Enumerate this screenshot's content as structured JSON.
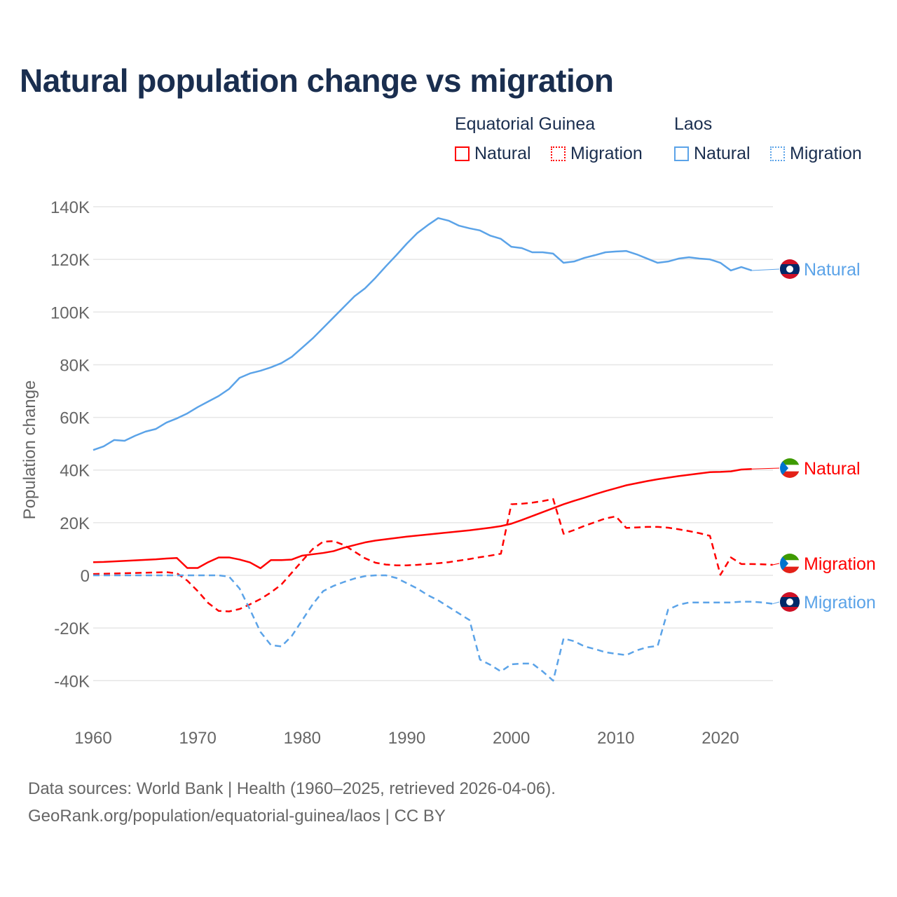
{
  "title": "Natural population change vs migration",
  "legend": {
    "groups": [
      {
        "name": "Equatorial Guinea",
        "color": "#ff0000",
        "items": [
          "Natural",
          "Migration"
        ]
      },
      {
        "name": "Laos",
        "color": "#5ba3e8",
        "items": [
          "Natural",
          "Migration"
        ]
      }
    ]
  },
  "footer": {
    "line1": "Data sources: World Bank | Health (1960–2025, retrieved 2026-04-06).",
    "line2": "GeoRank.org/population/equatorial-guinea/laos | CC BY"
  },
  "chart_data": {
    "type": "line",
    "title": "Natural population change vs migration",
    "xlabel": "",
    "ylabel": "Population change",
    "xlim": [
      1960,
      2025
    ],
    "ylim": [
      -50000,
      140000
    ],
    "x_ticks": [
      1960,
      1970,
      1980,
      1990,
      2000,
      2010,
      2020
    ],
    "x_tick_labels": [
      "1960",
      "1970",
      "1980",
      "1990",
      "2000",
      "2010",
      "2020"
    ],
    "y_ticks": [
      -40000,
      -20000,
      0,
      20000,
      40000,
      60000,
      80000,
      100000,
      120000,
      140000
    ],
    "y_tick_labels": [
      "-40K",
      "-20K",
      "0",
      "20K",
      "40K",
      "60K",
      "80K",
      "100K",
      "120K",
      "140K"
    ],
    "grid": true,
    "legend_position": "top-right",
    "series": [
      {
        "name": "Laos Natural",
        "country": "Laos",
        "kind": "Natural",
        "color": "#5ba3e8",
        "dash": false,
        "end_label": "Natural",
        "start": 1960,
        "values": [
          47.6,
          49,
          51.4,
          51.1,
          53,
          54.6,
          55.6,
          58,
          59.6,
          61.5,
          63.9,
          66,
          68.1,
          70.8,
          75,
          76.7,
          77.7,
          79,
          80.6,
          83,
          86.5,
          90,
          94,
          98,
          102,
          106,
          109,
          113,
          117.4,
          121.6,
          126,
          130,
          133,
          135.7,
          134.7,
          132.8,
          131.8,
          131,
          129,
          127.8,
          124.8,
          124.3,
          122.7,
          122.7,
          122.2,
          118.7,
          119.2,
          120.6,
          121.6,
          122.7,
          123,
          123.2,
          121.9,
          120.3,
          118.7,
          119.2,
          120.3,
          120.8,
          120.3,
          120,
          118.7,
          115.8,
          117.1,
          115.8
        ]
      },
      {
        "name": "Equatorial Guinea Natural",
        "country": "Equatorial Guinea",
        "kind": "Natural",
        "color": "#ff0000",
        "dash": false,
        "end_label": "Natural",
        "start": 1960,
        "values": [
          5,
          5.1,
          5.3,
          5.5,
          5.7,
          5.9,
          6.1,
          6.4,
          6.6,
          2.8,
          2.8,
          5,
          6.8,
          6.8,
          6,
          4.9,
          2.7,
          5.8,
          5.8,
          6,
          7.5,
          8,
          8.5,
          9.2,
          10.5,
          11.5,
          12.5,
          13.2,
          13.7,
          14.2,
          14.7,
          15.1,
          15.5,
          15.9,
          16.3,
          16.7,
          17.1,
          17.6,
          18.1,
          18.7,
          19.6,
          21,
          22.5,
          24,
          25.5,
          27,
          28.3,
          29.5,
          30.8,
          32,
          33.1,
          34.2,
          35,
          35.8,
          36.5,
          37.1,
          37.7,
          38.2,
          38.7,
          39.2,
          39.3,
          39.5,
          40.2,
          40.4
        ]
      },
      {
        "name": "Equatorial Guinea Migration",
        "country": "Equatorial Guinea",
        "kind": "Migration",
        "color": "#ff0000",
        "dash": true,
        "end_label": "Migration",
        "start": 1960,
        "values": [
          0.5,
          0.6,
          0.7,
          0.8,
          0.9,
          1,
          1.1,
          1.2,
          0.8,
          -2,
          -6,
          -10.5,
          -13.5,
          -13.7,
          -12.8,
          -11,
          -9,
          -6.5,
          -3.5,
          1,
          5.5,
          10,
          12.8,
          13,
          11.5,
          9,
          6.5,
          4.8,
          4.1,
          3.8,
          3.8,
          4,
          4.3,
          4.6,
          5,
          5.6,
          6.2,
          6.9,
          7.5,
          8.2,
          27,
          27.2,
          27.6,
          28.2,
          29,
          15.8,
          17.2,
          18.8,
          20.2,
          21.6,
          22.4,
          18,
          18.2,
          18.4,
          18.4,
          18.1,
          17.5,
          16.8,
          16,
          15,
          0.2,
          6.8,
          4.3,
          4.3,
          4.2,
          4
        ]
      },
      {
        "name": "Laos Migration",
        "country": "Laos",
        "kind": "Migration",
        "color": "#5ba3e8",
        "dash": true,
        "end_label": "Migration",
        "start": 1960,
        "values": [
          0,
          0,
          0,
          0,
          0,
          0,
          0,
          0,
          0,
          0,
          0,
          0,
          0,
          -0.5,
          -5,
          -13,
          -21.5,
          -26.5,
          -27,
          -23,
          -17,
          -11,
          -6,
          -4,
          -2.5,
          -1.2,
          -0.3,
          0,
          0,
          -1,
          -3,
          -5,
          -7.5,
          -9.5,
          -12,
          -14.5,
          -17,
          -32,
          -34,
          -36.5,
          -33.8,
          -33.5,
          -33.5,
          -36.5,
          -40,
          -24,
          -25,
          -27,
          -28,
          -29.2,
          -29.8,
          -30.3,
          -28.5,
          -27.3,
          -26.8,
          -13,
          -11.2,
          -10.3,
          -10.3,
          -10.3,
          -10.3,
          -10.3,
          -10,
          -10,
          -10.3,
          -10.8
        ]
      }
    ],
    "value_unit": "thousands"
  }
}
